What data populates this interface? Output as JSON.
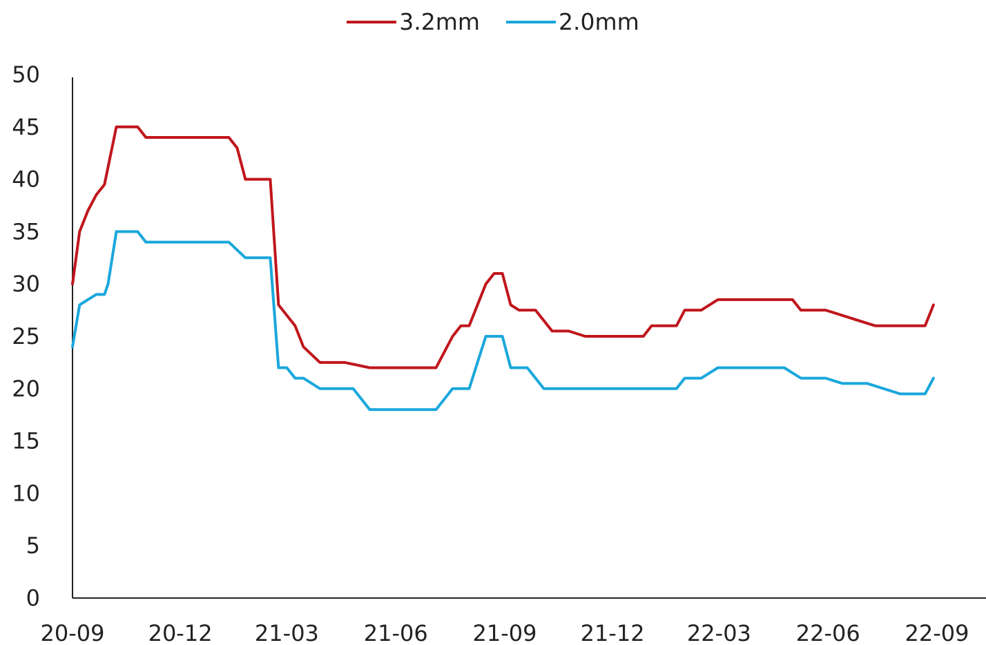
{
  "chart_data": {
    "type": "line",
    "x_ticks": [
      "20-09",
      "20-12",
      "21-03",
      "21-06",
      "21-09",
      "21-12",
      "22-03",
      "22-06",
      "22-09"
    ],
    "y_ticks": [
      "0",
      "5",
      "10",
      "15",
      "20",
      "25",
      "30",
      "35",
      "40",
      "45",
      "50"
    ],
    "ylim": [
      0,
      50
    ],
    "grid": false,
    "legend_position": "top-center",
    "series": [
      {
        "name": "3.2mm",
        "color": "#c0161c",
        "points": [
          [
            "2020-09-01",
            30
          ],
          [
            "2020-09-07",
            35
          ],
          [
            "2020-09-14",
            37
          ],
          [
            "2020-09-21",
            38.5
          ],
          [
            "2020-09-28",
            39.5
          ],
          [
            "2020-10-08",
            45
          ],
          [
            "2020-10-12",
            45
          ],
          [
            "2020-10-26",
            45
          ],
          [
            "2020-11-02",
            44
          ],
          [
            "2020-11-16",
            44
          ],
          [
            "2021-01-11",
            44
          ],
          [
            "2021-01-18",
            43
          ],
          [
            "2021-01-25",
            40
          ],
          [
            "2021-02-01",
            40
          ],
          [
            "2021-02-08",
            40
          ],
          [
            "2021-02-15",
            40
          ],
          [
            "2021-02-22",
            28
          ],
          [
            "2021-03-08",
            26
          ],
          [
            "2021-03-15",
            24
          ],
          [
            "2021-03-29",
            22.5
          ],
          [
            "2021-04-19",
            22.5
          ],
          [
            "2021-05-10",
            22
          ],
          [
            "2021-06-28",
            22
          ],
          [
            "2021-07-05",
            22
          ],
          [
            "2021-07-19",
            25
          ],
          [
            "2021-07-26",
            26
          ],
          [
            "2021-08-02",
            26
          ],
          [
            "2021-08-16",
            30
          ],
          [
            "2021-08-23",
            31
          ],
          [
            "2021-08-30",
            31
          ],
          [
            "2021-09-06",
            28
          ],
          [
            "2021-09-13",
            27.5
          ],
          [
            "2021-09-27",
            27.5
          ],
          [
            "2021-10-11",
            25.5
          ],
          [
            "2021-10-25",
            25.5
          ],
          [
            "2021-11-08",
            25
          ],
          [
            "2021-12-27",
            25
          ],
          [
            "2022-01-03",
            26
          ],
          [
            "2022-01-24",
            26
          ],
          [
            "2022-01-31",
            27.5
          ],
          [
            "2022-02-14",
            27.5
          ],
          [
            "2022-02-28",
            28.5
          ],
          [
            "2022-05-02",
            28.5
          ],
          [
            "2022-05-09",
            27.5
          ],
          [
            "2022-05-30",
            27.5
          ],
          [
            "2022-06-13",
            27
          ],
          [
            "2022-06-27",
            26.5
          ],
          [
            "2022-07-11",
            26
          ],
          [
            "2022-08-22",
            26
          ],
          [
            "2022-08-29",
            28
          ]
        ]
      },
      {
        "name": "2.0mm",
        "color": "#1aa7dc",
        "points": [
          [
            "2020-09-01",
            24
          ],
          [
            "2020-09-07",
            28
          ],
          [
            "2020-09-14",
            28.5
          ],
          [
            "2020-09-21",
            29
          ],
          [
            "2020-09-28",
            29
          ],
          [
            "2020-10-01",
            30
          ],
          [
            "2020-10-08",
            35
          ],
          [
            "2020-10-12",
            35
          ],
          [
            "2020-10-26",
            35
          ],
          [
            "2020-11-02",
            34
          ],
          [
            "2020-11-16",
            34
          ],
          [
            "2021-01-11",
            34
          ],
          [
            "2021-01-25",
            32.5
          ],
          [
            "2021-02-08",
            32.5
          ],
          [
            "2021-02-15",
            32.5
          ],
          [
            "2021-02-22",
            22
          ],
          [
            "2021-03-01",
            22
          ],
          [
            "2021-03-08",
            21
          ],
          [
            "2021-03-15",
            21
          ],
          [
            "2021-03-29",
            20
          ],
          [
            "2021-04-19",
            20
          ],
          [
            "2021-04-26",
            20
          ],
          [
            "2021-05-10",
            18
          ],
          [
            "2021-06-28",
            18
          ],
          [
            "2021-07-05",
            18
          ],
          [
            "2021-07-19",
            20
          ],
          [
            "2021-07-26",
            20
          ],
          [
            "2021-08-02",
            20
          ],
          [
            "2021-08-16",
            25
          ],
          [
            "2021-08-23",
            25
          ],
          [
            "2021-08-30",
            25
          ],
          [
            "2021-09-06",
            22
          ],
          [
            "2021-09-20",
            22
          ],
          [
            "2021-10-04",
            20
          ],
          [
            "2021-10-11",
            20
          ],
          [
            "2022-01-24",
            20
          ],
          [
            "2022-01-31",
            21
          ],
          [
            "2022-02-14",
            21
          ],
          [
            "2022-02-28",
            22
          ],
          [
            "2022-04-25",
            22
          ],
          [
            "2022-05-09",
            21
          ],
          [
            "2022-05-30",
            21
          ],
          [
            "2022-06-13",
            20.5
          ],
          [
            "2022-07-04",
            20.5
          ],
          [
            "2022-07-18",
            20
          ],
          [
            "2022-08-01",
            19.5
          ],
          [
            "2022-08-22",
            19.5
          ],
          [
            "2022-08-29",
            21
          ]
        ]
      }
    ]
  }
}
